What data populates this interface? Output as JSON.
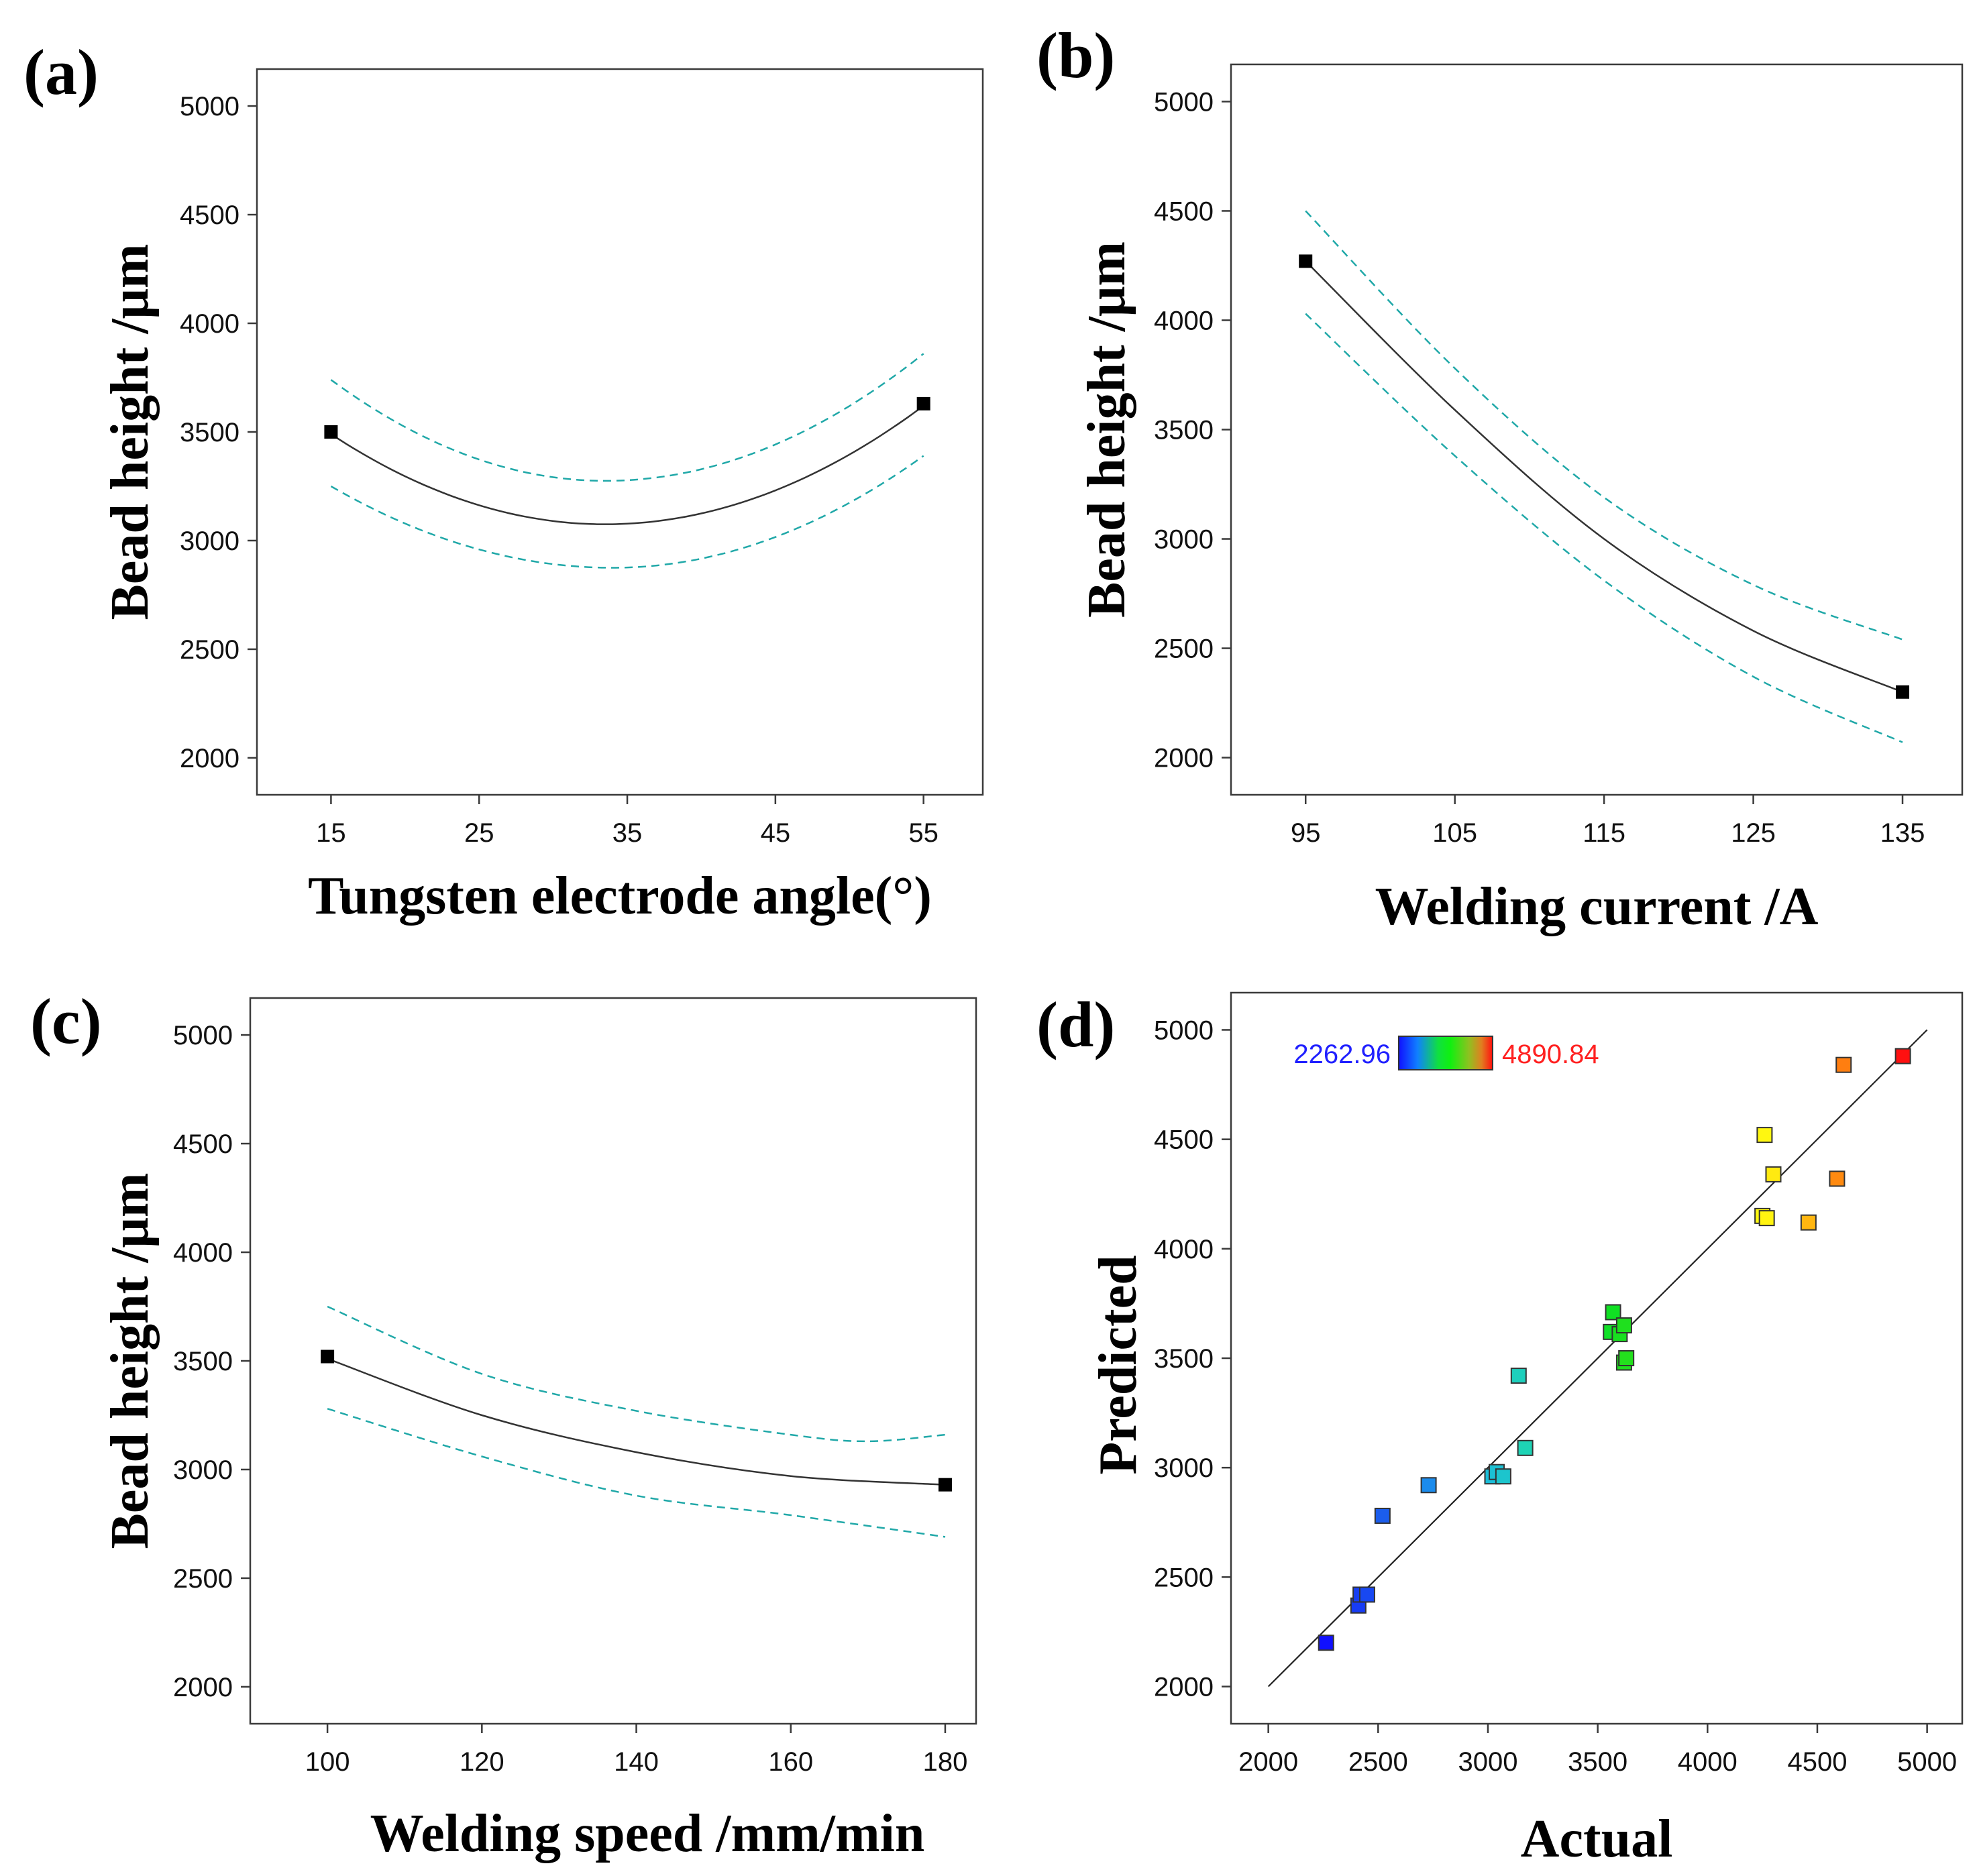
{
  "chart_data": [
    {
      "id": "a",
      "type": "line",
      "panel_label": "(a)",
      "xlabel": "Tungsten electrode angle(°)",
      "ylabel": "Bead height /μm",
      "xlim": [
        10,
        59
      ],
      "ylim": [
        1830,
        5170
      ],
      "xticks": [
        15,
        25,
        35,
        45,
        55
      ],
      "yticks": [
        2000,
        2500,
        3000,
        3500,
        4000,
        4500,
        5000
      ],
      "fit": {
        "x": [
          15,
          55
        ],
        "y": [
          3490,
          3620
        ],
        "min": {
          "x": 33.5,
          "y": 3075
        }
      },
      "ci_upper": {
        "x": [
          15,
          55
        ],
        "y": [
          3740,
          3860
        ],
        "min": {
          "x": 33.5,
          "y": 3275
        }
      },
      "ci_lower": {
        "x": [
          15,
          55
        ],
        "y": [
          3250,
          3390
        ],
        "min": {
          "x": 34,
          "y": 2875
        }
      },
      "points": [
        {
          "x": 15,
          "y": 3500
        },
        {
          "x": 55,
          "y": 3630
        }
      ]
    },
    {
      "id": "b",
      "type": "line",
      "panel_label": "(b)",
      "xlabel": "Welding current /A",
      "ylabel": "Bead height /μm",
      "xlim": [
        90,
        139
      ],
      "ylim": [
        1830,
        5170
      ],
      "xticks": [
        95,
        105,
        115,
        125,
        135
      ],
      "yticks": [
        2000,
        2500,
        3000,
        3500,
        4000,
        4500,
        5000
      ],
      "fit_points": [
        [
          95,
          4270
        ],
        [
          105,
          3590
        ],
        [
          115,
          3000
        ],
        [
          125,
          2580
        ],
        [
          135,
          2300
        ]
      ],
      "ci_upper_points": [
        [
          95,
          4500
        ],
        [
          105,
          3780
        ],
        [
          115,
          3190
        ],
        [
          125,
          2790
        ],
        [
          135,
          2540
        ]
      ],
      "ci_lower_points": [
        [
          95,
          4030
        ],
        [
          105,
          3380
        ],
        [
          115,
          2810
        ],
        [
          125,
          2370
        ],
        [
          135,
          2070
        ]
      ],
      "points": [
        {
          "x": 95,
          "y": 4270
        },
        {
          "x": 135,
          "y": 2300
        }
      ]
    },
    {
      "id": "c",
      "type": "line",
      "panel_label": "(c)",
      "xlabel": "Welding speed /mm/min",
      "ylabel": "Bead height /μm",
      "xlim": [
        90,
        184
      ],
      "ylim": [
        1830,
        5170
      ],
      "xticks": [
        100,
        120,
        140,
        160,
        180
      ],
      "yticks": [
        2000,
        2500,
        3000,
        3500,
        4000,
        4500,
        5000
      ],
      "fit_points": [
        [
          100,
          3510
        ],
        [
          120,
          3250
        ],
        [
          140,
          3080
        ],
        [
          160,
          2970
        ],
        [
          180,
          2930
        ]
      ],
      "ci_upper_points": [
        [
          100,
          3750
        ],
        [
          120,
          3440
        ],
        [
          140,
          3270
        ],
        [
          160,
          3160
        ],
        [
          170,
          3130
        ],
        [
          180,
          3160
        ]
      ],
      "ci_lower_points": [
        [
          100,
          3280
        ],
        [
          120,
          3060
        ],
        [
          140,
          2880
        ],
        [
          160,
          2790
        ],
        [
          180,
          2690
        ]
      ],
      "points": [
        {
          "x": 100,
          "y": 3520
        },
        {
          "x": 180,
          "y": 2930
        }
      ]
    },
    {
      "id": "d",
      "type": "scatter",
      "panel_label": "(d)",
      "xlabel": "Actual",
      "ylabel": "Predicted",
      "xlim": [
        1830,
        5160
      ],
      "ylim": [
        1830,
        5170
      ],
      "xticks": [
        2000,
        2500,
        3000,
        3500,
        4000,
        4500,
        5000
      ],
      "yticks": [
        2000,
        2500,
        3000,
        3500,
        4000,
        4500,
        5000
      ],
      "diagonal": [
        [
          2000,
          2000
        ],
        [
          5000,
          5000
        ]
      ],
      "colorbar": {
        "min_label": "2262.96",
        "max_label": "4890.84",
        "min": 2262.96,
        "max": 4890.84,
        "min_color": "#2020ff",
        "max_color": "#ff2020"
      },
      "points": [
        {
          "x": 2263,
          "y": 2200
        },
        {
          "x": 2410,
          "y": 2370
        },
        {
          "x": 2420,
          "y": 2420
        },
        {
          "x": 2450,
          "y": 2420
        },
        {
          "x": 2520,
          "y": 2780
        },
        {
          "x": 2730,
          "y": 2920
        },
        {
          "x": 3020,
          "y": 2960
        },
        {
          "x": 3040,
          "y": 2980
        },
        {
          "x": 3070,
          "y": 2960
        },
        {
          "x": 3170,
          "y": 3090
        },
        {
          "x": 3140,
          "y": 3420
        },
        {
          "x": 3560,
          "y": 3620
        },
        {
          "x": 3570,
          "y": 3710
        },
        {
          "x": 3600,
          "y": 3610
        },
        {
          "x": 3620,
          "y": 3650
        },
        {
          "x": 3620,
          "y": 3480
        },
        {
          "x": 3630,
          "y": 3500
        },
        {
          "x": 4250,
          "y": 4150
        },
        {
          "x": 4270,
          "y": 4140
        },
        {
          "x": 4260,
          "y": 4520
        },
        {
          "x": 4300,
          "y": 4340
        },
        {
          "x": 4460,
          "y": 4120
        },
        {
          "x": 4590,
          "y": 4320
        },
        {
          "x": 4620,
          "y": 4840
        },
        {
          "x": 4890,
          "y": 4880
        }
      ]
    }
  ]
}
